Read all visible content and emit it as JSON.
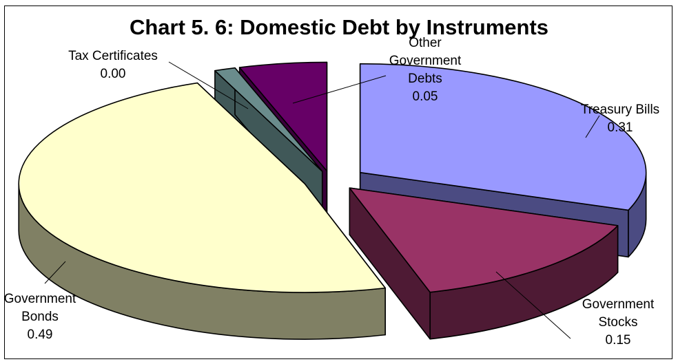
{
  "chart_data": {
    "type": "pie",
    "title": "Chart 5. 6: Domestic Debt by Instruments",
    "style": "3d-exploded",
    "slices": [
      {
        "label_lines": [
          "Treasury Bills"
        ],
        "value": 0.31,
        "value_text": "0.31",
        "color": "#9999ff",
        "side": "#4b4b82"
      },
      {
        "label_lines": [
          "Government",
          "Stocks"
        ],
        "value": 0.15,
        "value_text": "0.15",
        "color": "#993366",
        "side": "#4e1a34"
      },
      {
        "label_lines": [
          "Government",
          "Bonds"
        ],
        "value": 0.49,
        "value_text": "0.49",
        "color": "#ffffcc",
        "side": "#808064"
      },
      {
        "label_lines": [
          "Tax Certificates"
        ],
        "value": 0.0,
        "value_text": "0.00",
        "color": "#6a8c8c",
        "side": "#405858"
      },
      {
        "label_lines": [
          "Other",
          "Government",
          "Debts"
        ],
        "value": 0.05,
        "value_text": "0.05",
        "color": "#660066",
        "side": "#3a003a"
      }
    ],
    "legend": "none"
  }
}
